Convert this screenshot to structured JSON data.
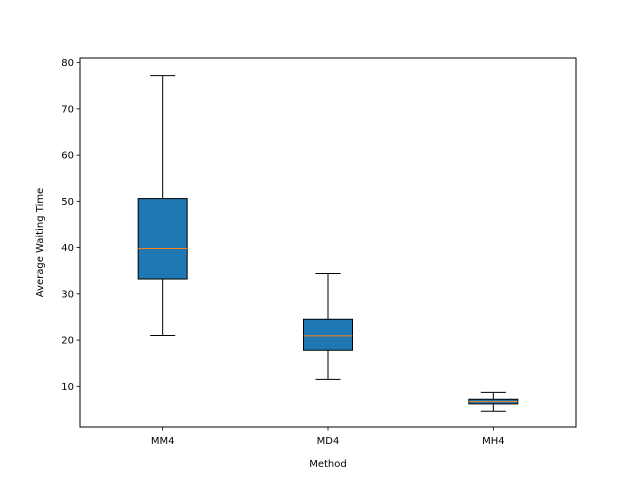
{
  "chart_data": {
    "type": "box",
    "xlabel": "Method",
    "ylabel": "Average Waiting Time",
    "ylim": [
      1.2,
      81.0
    ],
    "yticks": [
      10,
      20,
      30,
      40,
      50,
      60,
      70,
      80
    ],
    "grid": false,
    "colors": {
      "box_fill": "#1f77b4",
      "median": "#ff7f0e",
      "line": "#000000"
    },
    "categories": [
      "MM4",
      "MD4",
      "MH4"
    ],
    "series": [
      {
        "category": "MM4",
        "whisker_low": 21.0,
        "q1": 33.2,
        "median": 39.8,
        "q3": 50.6,
        "whisker_high": 77.2
      },
      {
        "category": "MD4",
        "whisker_low": 11.5,
        "q1": 17.8,
        "median": 20.9,
        "q3": 24.5,
        "whisker_high": 34.4
      },
      {
        "category": "MH4",
        "whisker_low": 4.6,
        "q1": 6.2,
        "median": 6.7,
        "q3": 7.2,
        "whisker_high": 8.7
      }
    ]
  }
}
